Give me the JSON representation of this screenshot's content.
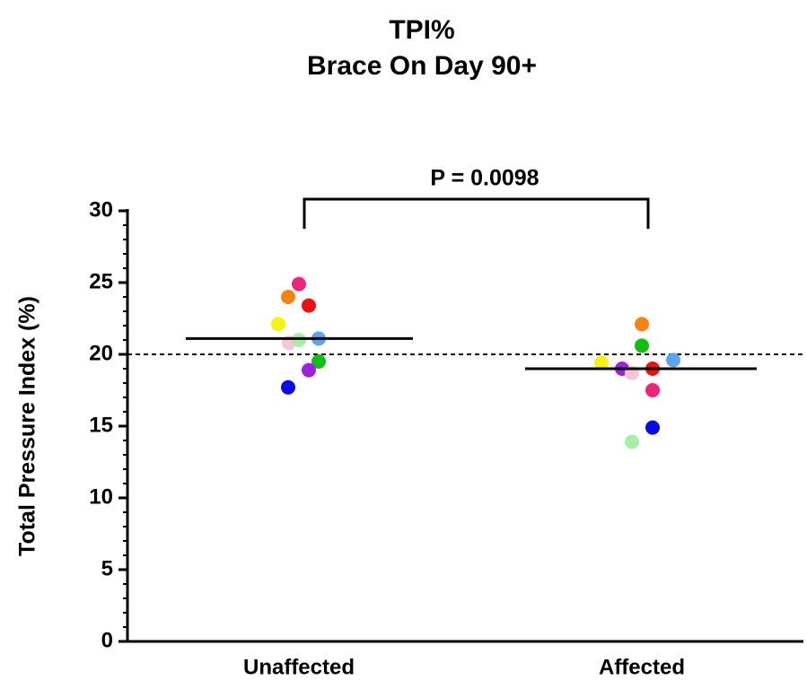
{
  "chart_data": {
    "type": "scatter",
    "title": "TPI%",
    "subtitle": "Brace On Day 90+",
    "ylabel": "Total Pressure Index (%)",
    "categories": [
      "Unaffected",
      "Affected"
    ],
    "groups": [
      {
        "values": [
          24.9,
          24.0,
          23.4,
          22.1,
          20.8,
          21.0,
          21.1,
          19.5,
          18.9,
          17.7
        ],
        "colors": [
          "#f0237d",
          "#f7820f",
          "#f20f0f",
          "#f5f50a",
          "#f9c4d6",
          "#a5f0a5",
          "#5aa5f0",
          "#0fbf0f",
          "#a020e0",
          "#0a0af0"
        ],
        "mean": 21.1
      },
      {
        "values": [
          22.1,
          20.6,
          19.6,
          19.4,
          19.0,
          19.0,
          18.7,
          17.5,
          14.9,
          13.9
        ],
        "colors": [
          "#f7820f",
          "#0fbf0f",
          "#5aa5f0",
          "#f5f50a",
          "#a020e0",
          "#f20f0f",
          "#f9c4d6",
          "#f0237d",
          "#0a0af0",
          "#a5f0a5"
        ],
        "mean": 19.0
      }
    ],
    "reference_line": 20,
    "annotation": "P = 0.0098",
    "ylim": [
      0,
      30
    ],
    "yticks": [
      0,
      5,
      10,
      15,
      20,
      25,
      30
    ],
    "yminorticks": [
      1,
      2,
      3,
      4,
      6,
      7,
      8,
      9,
      11,
      12,
      13,
      14,
      16,
      17,
      18,
      19,
      21,
      22,
      23,
      24,
      26,
      27,
      28,
      29
    ]
  }
}
